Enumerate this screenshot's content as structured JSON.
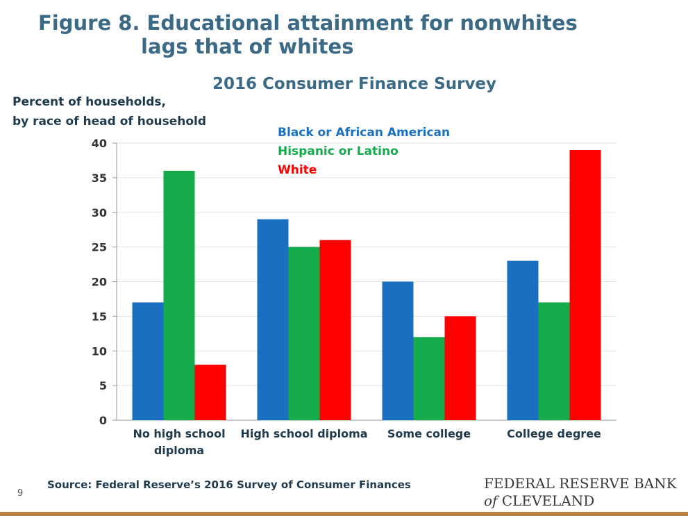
{
  "header": {
    "title_line1": "Figure 8. Educational attainment for nonwhites",
    "title_line2": "lags that of whites"
  },
  "chart_data": {
    "type": "bar",
    "title": "Figure 8. Educational attainment for nonwhites lags that of whites",
    "subtitle": "2016 Consumer Finance Survey",
    "ylabel_line1": "Percent of households,",
    "ylabel_line2": "by race of head of household",
    "xlabel": "",
    "categories": [
      [
        "No high school",
        "diploma"
      ],
      [
        "High school diploma"
      ],
      [
        "Some college"
      ],
      [
        "College degree"
      ]
    ],
    "series": [
      {
        "name": "Black or African American",
        "color": "#1a6fc0",
        "values": [
          17,
          29,
          20,
          23
        ]
      },
      {
        "name": "Hispanic or Latino",
        "color": "#13ab4c",
        "values": [
          36,
          25,
          12,
          17
        ]
      },
      {
        "name": "White",
        "color": "#ff0000",
        "values": [
          8,
          26,
          15,
          39
        ]
      }
    ],
    "ylim": [
      0,
      40
    ],
    "yticks": [
      0,
      5,
      10,
      15,
      20,
      25,
      30,
      35,
      40
    ],
    "grid": true,
    "legend_position": "top-center"
  },
  "footer": {
    "source": "Source: Federal Reserve’s 2016 Survey of Consumer Finances",
    "page_number": "9",
    "brand_line1": "FEDERAL RESERVE BANK",
    "brand_of": "of",
    "brand_line2": "CLEVELAND"
  },
  "colors": {
    "title": "#3b6a86",
    "accent_rule": "#b5803e"
  }
}
